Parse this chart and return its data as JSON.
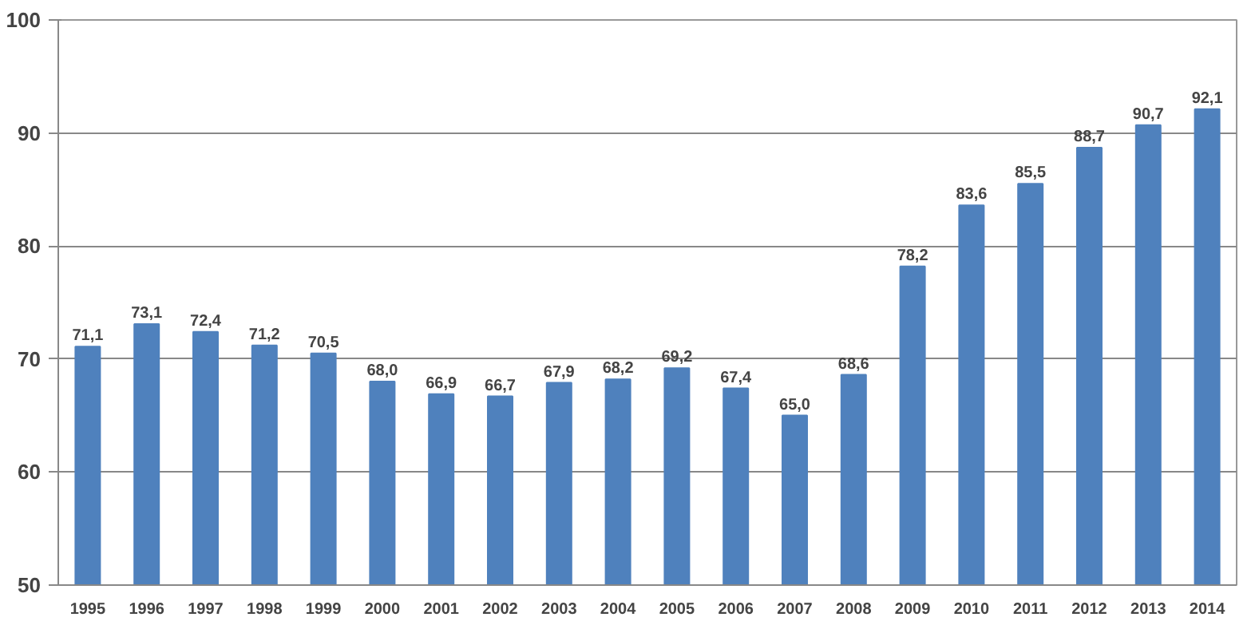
{
  "chart_data": {
    "type": "bar",
    "categories": [
      "1995",
      "1996",
      "1997",
      "1998",
      "1999",
      "2000",
      "2001",
      "2002",
      "2003",
      "2004",
      "2005",
      "2006",
      "2007",
      "2008",
      "2009",
      "2010",
      "2011",
      "2012",
      "2013",
      "2014"
    ],
    "values": [
      71.1,
      73.1,
      72.4,
      71.2,
      70.5,
      68.0,
      66.9,
      66.7,
      67.9,
      68.2,
      69.2,
      67.4,
      65.0,
      68.6,
      78.2,
      83.6,
      85.5,
      88.7,
      90.7,
      92.1
    ],
    "value_labels": [
      "71,1",
      "73,1",
      "72,4",
      "71,2",
      "70,5",
      "68,0",
      "66,9",
      "66,7",
      "67,9",
      "68,2",
      "69,2",
      "67,4",
      "65,0",
      "68,6",
      "78,2",
      "83,6",
      "85,5",
      "88,7",
      "90,7",
      "92,1"
    ],
    "color": "#4f81bd",
    "ylim": [
      50,
      100
    ],
    "yticks": [
      50,
      60,
      70,
      80,
      90,
      100
    ],
    "grid": "y"
  }
}
